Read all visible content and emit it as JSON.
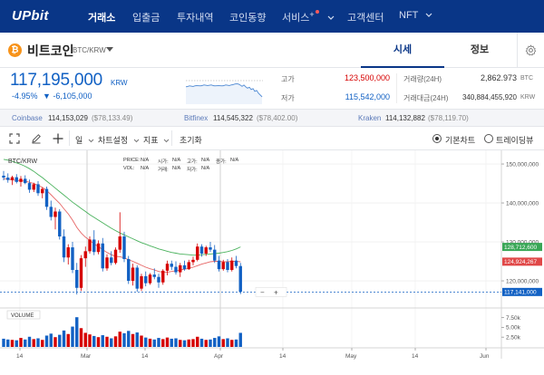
{
  "nav": {
    "logo": "UPbit",
    "items": [
      "거래소",
      "입출금",
      "투자내역",
      "코인동향",
      "서비스",
      "고객센터",
      "NFT"
    ],
    "colors": {
      "bg": "#093687",
      "active": "#ffffff"
    }
  },
  "coin": {
    "icon_glyph": "₿",
    "name": "비트코인",
    "pair": "BTC/KRW",
    "tabs": {
      "market": "시세",
      "info": "정보"
    }
  },
  "price": {
    "current": "117,195,000",
    "unit": "KRW",
    "change_rate": "-4.95%",
    "change_abs": "▼ -6,105,000"
  },
  "stats": {
    "high_label": "고가",
    "high_value": "123,500,000",
    "low_label": "저가",
    "low_value": "115,542,000",
    "volume_label": "거래량(24H)",
    "volume_value": "2,862.973",
    "volume_unit": "BTC",
    "amount_label": "거래대금(24H)",
    "amount_value": "340,884,455,920",
    "amount_unit": "KRW"
  },
  "exchanges": [
    {
      "name": "Coinbase",
      "price": "114,153,029",
      "sub": "($78,133.49)"
    },
    {
      "name": "Bitfinex",
      "price": "114,545,322",
      "sub": "($78,402.00)"
    },
    {
      "name": "Kraken",
      "price": "114,132,882",
      "sub": "($78,119.70)"
    }
  ],
  "toolbar": {
    "period": "일",
    "chart_settings": "차트설정",
    "indicator": "지표",
    "reset": "초기화",
    "view_basic": "기본차트",
    "view_trading": "트레이딩뷰"
  },
  "ohlc": {
    "price_label": "PRICE:",
    "price_val": "N/A",
    "open_label": "시가:",
    "open_val": "N/A",
    "high_label": "고가:",
    "high_val": "N/A",
    "close_label": "종가:",
    "close_val": "N/A",
    "vol_label": "VOL:",
    "vol_val": "N/A",
    "amt_label": "거래:",
    "amt_val": "N/A",
    "low_label": "저가:",
    "low_val": "N/A"
  },
  "chart_data": {
    "type": "candlestick",
    "title": "BTC/KRW",
    "y_ticks": [
      "150,000,000",
      "140,000,000",
      "130,000,000",
      "120,000,000"
    ],
    "y_tick_values": [
      150000000,
      140000000,
      130000000,
      120000000
    ],
    "ylim": [
      113500000,
      153500000
    ],
    "price_tags": [
      {
        "value": "128,712,600",
        "num": 128712600,
        "color": "#3aa757"
      },
      {
        "value": "124,924,267",
        "num": 124924267,
        "color": "#e04848"
      },
      {
        "value": "117,141,000",
        "num": 117141000,
        "color": "#1261c4"
      }
    ],
    "x_ticks": [
      "14",
      "Mar",
      "14",
      "Apr",
      "14",
      "May",
      "14",
      "Jun"
    ],
    "volume_label": "VOLUME",
    "volume_ticks": [
      "7.50k",
      "5.00k",
      "2.50k"
    ],
    "volume_tick_values": [
      7500,
      5000,
      2500
    ],
    "volume_max": 9500,
    "candles": [
      [
        147.0,
        148.2,
        145.8,
        146.5
      ],
      [
        146.5,
        147.6,
        145.2,
        145.9
      ],
      [
        145.9,
        147.0,
        144.6,
        146.6
      ],
      [
        146.6,
        147.4,
        145.0,
        145.4
      ],
      [
        145.4,
        146.9,
        144.2,
        146.2
      ],
      [
        146.2,
        147.1,
        144.8,
        145.1
      ],
      [
        145.1,
        146.0,
        142.6,
        143.4
      ],
      [
        143.4,
        145.2,
        142.8,
        144.8
      ],
      [
        144.8,
        145.6,
        141.8,
        142.5
      ],
      [
        142.5,
        144.0,
        141.2,
        143.6
      ],
      [
        143.6,
        144.2,
        138.2,
        139.0
      ],
      [
        139.0,
        140.6,
        135.5,
        136.4
      ],
      [
        136.4,
        138.8,
        133.2,
        137.8
      ],
      [
        137.8,
        138.4,
        130.6,
        131.4
      ],
      [
        131.4,
        133.2,
        124.8,
        126.0
      ],
      [
        126.0,
        129.4,
        124.2,
        128.6
      ],
      [
        128.6,
        130.0,
        122.0,
        122.8
      ],
      [
        122.8,
        124.6,
        116.5,
        118.2
      ],
      [
        118.2,
        126.6,
        117.4,
        125.8
      ],
      [
        125.8,
        128.8,
        123.6,
        127.6
      ],
      [
        127.6,
        131.4,
        127.0,
        130.6
      ],
      [
        130.6,
        133.0,
        126.6,
        127.4
      ],
      [
        127.4,
        130.4,
        126.8,
        129.6
      ],
      [
        129.6,
        131.0,
        122.4,
        123.2
      ],
      [
        123.2,
        126.8,
        122.6,
        126.0
      ],
      [
        126.0,
        127.6,
        124.0,
        124.6
      ],
      [
        124.6,
        128.6,
        124.2,
        128.0
      ],
      [
        128.0,
        137.6,
        127.2,
        131.4
      ],
      [
        131.4,
        132.6,
        124.8,
        125.6
      ],
      [
        125.6,
        126.4,
        119.2,
        120.0
      ],
      [
        120.0,
        124.4,
        118.8,
        123.4
      ],
      [
        123.4,
        124.0,
        117.2,
        118.0
      ],
      [
        118.0,
        121.8,
        117.4,
        121.2
      ],
      [
        121.2,
        122.4,
        118.6,
        119.4
      ],
      [
        119.4,
        122.0,
        119.0,
        121.6
      ],
      [
        121.6,
        123.2,
        120.4,
        121.0
      ],
      [
        121.0,
        121.8,
        118.2,
        119.6
      ],
      [
        119.6,
        123.0,
        119.0,
        122.6
      ],
      [
        122.6,
        125.2,
        121.4,
        124.4
      ],
      [
        124.4,
        125.2,
        122.8,
        123.6
      ],
      [
        123.6,
        125.0,
        121.6,
        122.2
      ],
      [
        122.2,
        124.6,
        121.0,
        124.0
      ],
      [
        124.0,
        125.2,
        122.6,
        123.0
      ],
      [
        123.0,
        125.4,
        122.8,
        124.8
      ],
      [
        124.8,
        126.2,
        124.0,
        125.4
      ],
      [
        125.4,
        129.6,
        125.0,
        128.8
      ],
      [
        128.8,
        129.4,
        126.2,
        127.0
      ],
      [
        127.0,
        129.0,
        126.4,
        128.6
      ],
      [
        128.6,
        130.0,
        127.4,
        128.0
      ],
      [
        128.0,
        129.2,
        124.6,
        125.2
      ],
      [
        125.2,
        126.4,
        122.4,
        123.0
      ],
      [
        123.0,
        125.4,
        122.6,
        124.8
      ],
      [
        124.8,
        125.6,
        122.2,
        122.8
      ],
      [
        122.8,
        126.0,
        122.4,
        125.2
      ],
      [
        125.2,
        126.4,
        123.2,
        123.8
      ],
      [
        123.8,
        124.6,
        116.6,
        117.2
      ]
    ],
    "volumes": [
      2100,
      1900,
      1800,
      1700,
      2300,
      1900,
      2600,
      2000,
      2200,
      1800,
      2900,
      3400,
      2500,
      3100,
      4200,
      3300,
      5200,
      7600,
      4800,
      3600,
      3200,
      2800,
      2500,
      3000,
      2600,
      2200,
      2700,
      3900,
      3500,
      4100,
      3300,
      3700,
      2900,
      2400,
      2100,
      1900,
      2300,
      2000,
      2400,
      2100,
      2200,
      1800,
      1700,
      1900,
      2000,
      2600,
      2100,
      1800,
      1900,
      2300,
      2700,
      2000,
      2200,
      1800,
      1900,
      3600
    ],
    "ma_green": [
      151.2,
      151.0,
      150.7,
      150.3,
      149.9,
      149.4,
      148.8,
      148.1,
      147.3,
      146.5,
      145.6,
      144.7,
      143.8,
      142.9,
      142.0,
      141.1,
      140.2,
      139.4,
      138.6,
      137.8,
      137.0,
      136.3,
      135.6,
      134.9,
      134.2,
      133.5,
      132.9,
      132.3,
      131.8,
      131.3,
      130.8,
      130.3,
      129.8,
      129.4,
      129.0,
      128.6,
      128.2,
      127.9,
      127.6,
      127.3,
      127.1,
      126.9,
      126.8,
      126.7,
      126.6,
      126.6,
      126.7,
      126.8,
      126.9,
      127.0,
      127.1,
      127.3,
      127.5,
      127.8,
      128.2,
      128.7
    ],
    "ma_red": [
      146.2,
      146.1,
      145.9,
      145.8,
      145.7,
      145.6,
      145.3,
      145.0,
      144.5,
      144.0,
      143.2,
      142.1,
      141.0,
      139.9,
      138.5,
      137.2,
      135.6,
      133.7,
      132.3,
      131.2,
      130.4,
      129.5,
      128.8,
      128.0,
      127.3,
      126.7,
      126.3,
      126.2,
      125.9,
      125.4,
      125.0,
      124.5,
      124.0,
      123.5,
      123.1,
      122.8,
      122.4,
      122.2,
      122.2,
      122.4,
      122.6,
      122.8,
      123.0,
      123.2,
      123.5,
      123.9,
      124.3,
      124.6,
      124.9,
      125.0,
      125.0,
      124.9,
      124.9,
      125.0,
      125.0,
      124.9
    ]
  }
}
